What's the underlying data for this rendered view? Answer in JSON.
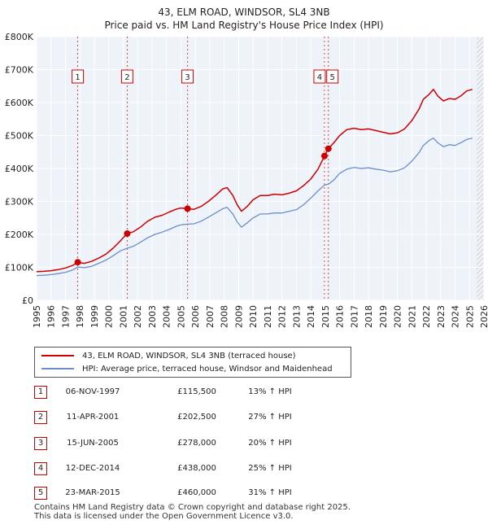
{
  "chart_data": {
    "type": "line",
    "title": "43, ELM ROAD, WINDSOR, SL4 3NB",
    "subtitle": "Price paid vs. HM Land Registry's House Price Index (HPI)",
    "xlabel": "",
    "ylabel": "",
    "xlim": [
      1995,
      2026
    ],
    "ylim": [
      0,
      800000
    ],
    "x_ticks": [
      "1995",
      "1996",
      "1997",
      "1998",
      "1999",
      "2000",
      "2001",
      "2002",
      "2003",
      "2004",
      "2005",
      "2006",
      "2007",
      "2008",
      "2009",
      "2010",
      "2011",
      "2012",
      "2013",
      "2014",
      "2015",
      "2016",
      "2017",
      "2018",
      "2019",
      "2020",
      "2021",
      "2022",
      "2023",
      "2024",
      "2025",
      "2026"
    ],
    "y_ticks": [
      {
        "value": 0,
        "label": "£0"
      },
      {
        "value": 100000,
        "label": "£100K"
      },
      {
        "value": 200000,
        "label": "£200K"
      },
      {
        "value": 300000,
        "label": "£300K"
      },
      {
        "value": 400000,
        "label": "£400K"
      },
      {
        "value": 500000,
        "label": "£500K"
      },
      {
        "value": 600000,
        "label": "£600K"
      },
      {
        "value": 700000,
        "label": "£700K"
      },
      {
        "value": 800000,
        "label": "£800K"
      }
    ],
    "series": [
      {
        "name": "43, ELM ROAD, WINDSOR, SL4 3NB (terraced house)",
        "color": "#cc0000",
        "points": [
          [
            1995.0,
            87000
          ],
          [
            1995.5,
            88000
          ],
          [
            1996.0,
            90000
          ],
          [
            1996.5,
            93000
          ],
          [
            1997.0,
            98000
          ],
          [
            1997.5,
            106000
          ],
          [
            1997.85,
            115500
          ],
          [
            1998.3,
            112000
          ],
          [
            1998.8,
            118000
          ],
          [
            1999.3,
            128000
          ],
          [
            1999.8,
            140000
          ],
          [
            2000.3,
            158000
          ],
          [
            2000.8,
            180000
          ],
          [
            2001.0,
            190000
          ],
          [
            2001.28,
            202500
          ],
          [
            2001.7,
            208000
          ],
          [
            2002.2,
            222000
          ],
          [
            2002.7,
            240000
          ],
          [
            2003.2,
            252000
          ],
          [
            2003.7,
            258000
          ],
          [
            2004.2,
            268000
          ],
          [
            2004.7,
            277000
          ],
          [
            2005.0,
            280000
          ],
          [
            2005.46,
            278000
          ],
          [
            2005.9,
            276000
          ],
          [
            2006.4,
            285000
          ],
          [
            2006.9,
            300000
          ],
          [
            2007.4,
            318000
          ],
          [
            2007.9,
            338000
          ],
          [
            2008.2,
            342000
          ],
          [
            2008.6,
            318000
          ],
          [
            2008.9,
            290000
          ],
          [
            2009.2,
            270000
          ],
          [
            2009.6,
            285000
          ],
          [
            2010.0,
            305000
          ],
          [
            2010.5,
            318000
          ],
          [
            2011.0,
            318000
          ],
          [
            2011.5,
            322000
          ],
          [
            2012.0,
            320000
          ],
          [
            2012.5,
            325000
          ],
          [
            2013.0,
            332000
          ],
          [
            2013.5,
            348000
          ],
          [
            2014.0,
            368000
          ],
          [
            2014.5,
            398000
          ],
          [
            2014.95,
            438000
          ],
          [
            2015.22,
            460000
          ],
          [
            2015.6,
            478000
          ],
          [
            2016.0,
            500000
          ],
          [
            2016.5,
            518000
          ],
          [
            2017.0,
            522000
          ],
          [
            2017.5,
            518000
          ],
          [
            2018.0,
            520000
          ],
          [
            2018.5,
            515000
          ],
          [
            2019.0,
            510000
          ],
          [
            2019.5,
            505000
          ],
          [
            2020.0,
            508000
          ],
          [
            2020.5,
            520000
          ],
          [
            2021.0,
            545000
          ],
          [
            2021.5,
            580000
          ],
          [
            2021.8,
            610000
          ],
          [
            2022.2,
            625000
          ],
          [
            2022.5,
            640000
          ],
          [
            2022.8,
            620000
          ],
          [
            2023.2,
            605000
          ],
          [
            2023.6,
            612000
          ],
          [
            2024.0,
            610000
          ],
          [
            2024.4,
            620000
          ],
          [
            2024.8,
            635000
          ],
          [
            2025.2,
            640000
          ]
        ]
      },
      {
        "name": "HPI: Average price, terraced house, Windsor and Maidenhead",
        "color": "#6b8fc9",
        "points": [
          [
            1995.0,
            75000
          ],
          [
            1995.5,
            76000
          ],
          [
            1996.0,
            78000
          ],
          [
            1996.5,
            81000
          ],
          [
            1997.0,
            85000
          ],
          [
            1997.5,
            92000
          ],
          [
            1997.85,
            101000
          ],
          [
            1998.3,
            99000
          ],
          [
            1998.8,
            103000
          ],
          [
            1999.3,
            112000
          ],
          [
            1999.8,
            122000
          ],
          [
            2000.3,
            135000
          ],
          [
            2000.8,
            150000
          ],
          [
            2001.28,
            158000
          ],
          [
            2001.7,
            164000
          ],
          [
            2002.2,
            176000
          ],
          [
            2002.7,
            190000
          ],
          [
            2003.2,
            200000
          ],
          [
            2003.7,
            207000
          ],
          [
            2004.2,
            215000
          ],
          [
            2004.7,
            225000
          ],
          [
            2005.0,
            229000
          ],
          [
            2005.46,
            231000
          ],
          [
            2005.9,
            232000
          ],
          [
            2006.4,
            240000
          ],
          [
            2006.9,
            252000
          ],
          [
            2007.4,
            265000
          ],
          [
            2007.9,
            278000
          ],
          [
            2008.2,
            282000
          ],
          [
            2008.6,
            262000
          ],
          [
            2008.9,
            238000
          ],
          [
            2009.2,
            222000
          ],
          [
            2009.6,
            235000
          ],
          [
            2010.0,
            250000
          ],
          [
            2010.5,
            262000
          ],
          [
            2011.0,
            262000
          ],
          [
            2011.5,
            265000
          ],
          [
            2012.0,
            265000
          ],
          [
            2012.5,
            270000
          ],
          [
            2013.0,
            275000
          ],
          [
            2013.5,
            290000
          ],
          [
            2014.0,
            310000
          ],
          [
            2014.5,
            332000
          ],
          [
            2014.95,
            350000
          ],
          [
            2015.22,
            352000
          ],
          [
            2015.6,
            365000
          ],
          [
            2016.0,
            385000
          ],
          [
            2016.5,
            398000
          ],
          [
            2017.0,
            403000
          ],
          [
            2017.5,
            400000
          ],
          [
            2018.0,
            402000
          ],
          [
            2018.5,
            398000
          ],
          [
            2019.0,
            395000
          ],
          [
            2019.5,
            390000
          ],
          [
            2020.0,
            393000
          ],
          [
            2020.5,
            402000
          ],
          [
            2021.0,
            422000
          ],
          [
            2021.5,
            448000
          ],
          [
            2021.8,
            470000
          ],
          [
            2022.2,
            485000
          ],
          [
            2022.5,
            492000
          ],
          [
            2022.8,
            478000
          ],
          [
            2023.2,
            466000
          ],
          [
            2023.6,
            472000
          ],
          [
            2024.0,
            470000
          ],
          [
            2024.4,
            478000
          ],
          [
            2024.8,
            488000
          ],
          [
            2025.2,
            492000
          ]
        ]
      }
    ],
    "sales": [
      {
        "id": "1",
        "x": 1997.85,
        "price": 115500,
        "date": "06-NOV-1997",
        "price_label": "£115,500",
        "hpi": "13% ↑ HPI"
      },
      {
        "id": "2",
        "x": 2001.28,
        "price": 202500,
        "date": "11-APR-2001",
        "price_label": "£202,500",
        "hpi": "27% ↑ HPI"
      },
      {
        "id": "3",
        "x": 2005.46,
        "price": 278000,
        "date": "15-JUN-2005",
        "price_label": "£278,000",
        "hpi": "20% ↑ HPI"
      },
      {
        "id": "4",
        "x": 2014.95,
        "price": 438000,
        "date": "12-DEC-2014",
        "price_label": "£438,000",
        "hpi": "25% ↑ HPI"
      },
      {
        "id": "5",
        "x": 2015.22,
        "price": 460000,
        "date": "23-MAR-2015",
        "price_label": "£460,000",
        "hpi": "31% ↑ HPI"
      }
    ],
    "future_shading_from": 2025.5,
    "grid": true,
    "legend_position": "below-chart"
  },
  "footer": {
    "line1": "Contains HM Land Registry data © Crown copyright and database right 2025.",
    "line2": "This data is licensed under the Open Government Licence v3.0."
  },
  "colors": {
    "property": "#cc0000",
    "hpi": "#6b8fc9",
    "plot_bg": "#eef2f9",
    "future_hatch": "#c8c8c8"
  }
}
